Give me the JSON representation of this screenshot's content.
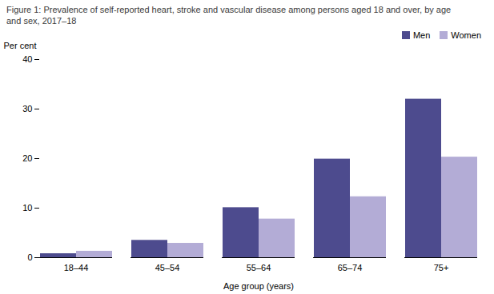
{
  "chart_data": {
    "type": "bar",
    "title": "Figure 1: Prevalence of self-reported heart, stroke and vascular disease among persons aged 18 and over, by age\nand sex, 2017–18",
    "xlabel": "Age group (years)",
    "ylabel": "Per cent",
    "categories": [
      "18–44",
      "45–54",
      "55–64",
      "65–74",
      "75+"
    ],
    "series": [
      {
        "name": "Men",
        "color": "#4d4b8e",
        "values": [
          0.8,
          3.5,
          10.1,
          19.9,
          32.0
        ]
      },
      {
        "name": "Women",
        "color": "#b3acd6",
        "values": [
          1.3,
          2.9,
          7.8,
          12.3,
          20.3
        ]
      }
    ],
    "ylim": [
      0,
      40
    ],
    "yticks": [
      0,
      10,
      20,
      30,
      40
    ],
    "grid": false,
    "legend": "top-right"
  }
}
